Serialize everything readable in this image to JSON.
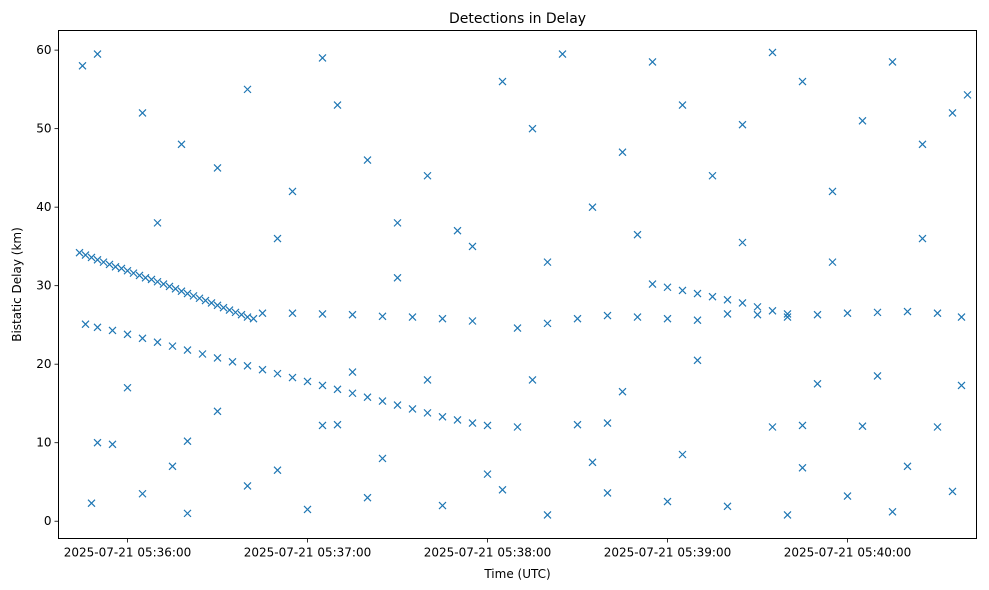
{
  "chart_data": {
    "type": "scatter",
    "title": "Detections in Delay",
    "xlabel": "Time (UTC)",
    "ylabel": "Bistatic Delay (km)",
    "marker": "x",
    "color": "#1f77b4",
    "grid": false,
    "xlim": [
      "2025-07-21 05:35:37",
      "2025-07-21 05:40:43"
    ],
    "ylim": [
      -2.2,
      62.5
    ],
    "x_ticks": [
      "2025-07-21 05:36:00",
      "2025-07-21 05:37:00",
      "2025-07-21 05:38:00",
      "2025-07-21 05:39:00",
      "2025-07-21 05:40:00"
    ],
    "y_ticks": [
      0,
      10,
      20,
      30,
      40,
      50,
      60
    ],
    "series": [
      {
        "points": [
          [
            "2025-07-21 05:35:44",
            34.2
          ],
          [
            "2025-07-21 05:35:46",
            33.9
          ],
          [
            "2025-07-21 05:35:48",
            33.6
          ],
          [
            "2025-07-21 05:35:50",
            33.3
          ],
          [
            "2025-07-21 05:35:52",
            33.0
          ],
          [
            "2025-07-21 05:35:54",
            32.7
          ],
          [
            "2025-07-21 05:35:56",
            32.4
          ],
          [
            "2025-07-21 05:35:58",
            32.2
          ],
          [
            "2025-07-21 05:36:00",
            31.9
          ],
          [
            "2025-07-21 05:36:02",
            31.6
          ],
          [
            "2025-07-21 05:36:04",
            31.3
          ],
          [
            "2025-07-21 05:36:06",
            31.0
          ],
          [
            "2025-07-21 05:36:08",
            30.8
          ],
          [
            "2025-07-21 05:36:10",
            30.5
          ],
          [
            "2025-07-21 05:36:12",
            30.2
          ],
          [
            "2025-07-21 05:36:14",
            29.9
          ],
          [
            "2025-07-21 05:36:16",
            29.6
          ],
          [
            "2025-07-21 05:36:18",
            29.3
          ],
          [
            "2025-07-21 05:36:20",
            29.0
          ],
          [
            "2025-07-21 05:36:22",
            28.7
          ],
          [
            "2025-07-21 05:36:24",
            28.4
          ],
          [
            "2025-07-21 05:36:26",
            28.1
          ],
          [
            "2025-07-21 05:36:28",
            27.8
          ],
          [
            "2025-07-21 05:36:30",
            27.5
          ],
          [
            "2025-07-21 05:36:32",
            27.2
          ],
          [
            "2025-07-21 05:36:34",
            26.9
          ],
          [
            "2025-07-21 05:36:36",
            26.6
          ],
          [
            "2025-07-21 05:36:38",
            26.3
          ],
          [
            "2025-07-21 05:36:40",
            26.0
          ],
          [
            "2025-07-21 05:36:42",
            25.8
          ],
          [
            "2025-07-21 05:35:46",
            25.1
          ],
          [
            "2025-07-21 05:35:50",
            24.7
          ],
          [
            "2025-07-21 05:35:55",
            24.3
          ],
          [
            "2025-07-21 05:36:00",
            23.8
          ],
          [
            "2025-07-21 05:36:05",
            23.3
          ],
          [
            "2025-07-21 05:36:10",
            22.8
          ],
          [
            "2025-07-21 05:36:15",
            22.3
          ],
          [
            "2025-07-21 05:36:20",
            21.8
          ],
          [
            "2025-07-21 05:36:25",
            21.3
          ],
          [
            "2025-07-21 05:36:30",
            20.8
          ],
          [
            "2025-07-21 05:36:35",
            20.3
          ],
          [
            "2025-07-21 05:36:40",
            19.8
          ],
          [
            "2025-07-21 05:36:45",
            19.3
          ],
          [
            "2025-07-21 05:36:50",
            18.8
          ],
          [
            "2025-07-21 05:36:55",
            18.3
          ],
          [
            "2025-07-21 05:37:00",
            17.8
          ],
          [
            "2025-07-21 05:37:05",
            17.3
          ],
          [
            "2025-07-21 05:37:10",
            16.8
          ],
          [
            "2025-07-21 05:37:15",
            16.3
          ],
          [
            "2025-07-21 05:37:20",
            15.8
          ],
          [
            "2025-07-21 05:37:25",
            15.3
          ],
          [
            "2025-07-21 05:37:30",
            14.8
          ],
          [
            "2025-07-21 05:37:35",
            14.3
          ],
          [
            "2025-07-21 05:37:40",
            13.8
          ],
          [
            "2025-07-21 05:37:45",
            13.3
          ],
          [
            "2025-07-21 05:37:50",
            12.9
          ],
          [
            "2025-07-21 05:37:55",
            12.5
          ],
          [
            "2025-07-21 05:38:00",
            12.2
          ],
          [
            "2025-07-21 05:36:45",
            26.5
          ],
          [
            "2025-07-21 05:36:55",
            26.5
          ],
          [
            "2025-07-21 05:37:05",
            26.4
          ],
          [
            "2025-07-21 05:37:15",
            26.3
          ],
          [
            "2025-07-21 05:37:25",
            26.1
          ],
          [
            "2025-07-21 05:37:35",
            26.0
          ],
          [
            "2025-07-21 05:37:45",
            25.8
          ],
          [
            "2025-07-21 05:37:55",
            25.5
          ],
          [
            "2025-07-21 05:38:10",
            24.6
          ],
          [
            "2025-07-21 05:38:20",
            25.2
          ],
          [
            "2025-07-21 05:38:30",
            25.8
          ],
          [
            "2025-07-21 05:38:40",
            26.2
          ],
          [
            "2025-07-21 05:38:50",
            26.0
          ],
          [
            "2025-07-21 05:39:00",
            25.8
          ],
          [
            "2025-07-21 05:39:10",
            25.6
          ],
          [
            "2025-07-21 05:39:20",
            26.4
          ],
          [
            "2025-07-21 05:39:30",
            26.3
          ],
          [
            "2025-07-21 05:39:40",
            26.0
          ],
          [
            "2025-07-21 05:39:50",
            26.3
          ],
          [
            "2025-07-21 05:40:00",
            26.5
          ],
          [
            "2025-07-21 05:40:10",
            26.6
          ],
          [
            "2025-07-21 05:40:20",
            26.7
          ],
          [
            "2025-07-21 05:40:30",
            26.5
          ],
          [
            "2025-07-21 05:40:38",
            26.0
          ],
          [
            "2025-07-21 05:38:55",
            30.2
          ],
          [
            "2025-07-21 05:39:00",
            29.8
          ],
          [
            "2025-07-21 05:39:05",
            29.4
          ],
          [
            "2025-07-21 05:39:10",
            29.0
          ],
          [
            "2025-07-21 05:39:15",
            28.6
          ],
          [
            "2025-07-21 05:39:20",
            28.2
          ],
          [
            "2025-07-21 05:39:25",
            27.8
          ],
          [
            "2025-07-21 05:39:30",
            27.3
          ],
          [
            "2025-07-21 05:39:35",
            26.8
          ],
          [
            "2025-07-21 05:39:40",
            26.4
          ],
          [
            "2025-07-21 05:35:50",
            10.0
          ],
          [
            "2025-07-21 05:35:55",
            9.8
          ],
          [
            "2025-07-21 05:36:20",
            10.2
          ],
          [
            "2025-07-21 05:37:05",
            12.2
          ],
          [
            "2025-07-21 05:37:10",
            12.3
          ],
          [
            "2025-07-21 05:38:10",
            12.0
          ],
          [
            "2025-07-21 05:38:30",
            12.3
          ],
          [
            "2025-07-21 05:38:40",
            12.5
          ],
          [
            "2025-07-21 05:39:35",
            12.0
          ],
          [
            "2025-07-21 05:39:45",
            12.2
          ],
          [
            "2025-07-21 05:40:05",
            12.1
          ],
          [
            "2025-07-21 05:40:30",
            12.0
          ],
          [
            "2025-07-21 05:35:45",
            58.0
          ],
          [
            "2025-07-21 05:35:50",
            59.5
          ],
          [
            "2025-07-21 05:36:05",
            52.0
          ],
          [
            "2025-07-21 05:36:18",
            48.0
          ],
          [
            "2025-07-21 05:36:30",
            45.0
          ],
          [
            "2025-07-21 05:36:40",
            55.0
          ],
          [
            "2025-07-21 05:36:55",
            42.0
          ],
          [
            "2025-07-21 05:37:05",
            59.0
          ],
          [
            "2025-07-21 05:37:10",
            53.0
          ],
          [
            "2025-07-21 05:37:20",
            46.0
          ],
          [
            "2025-07-21 05:37:30",
            38.0
          ],
          [
            "2025-07-21 05:37:40",
            44.0
          ],
          [
            "2025-07-21 05:37:50",
            37.0
          ],
          [
            "2025-07-21 05:38:05",
            56.0
          ],
          [
            "2025-07-21 05:38:15",
            50.0
          ],
          [
            "2025-07-21 05:38:25",
            59.5
          ],
          [
            "2025-07-21 05:38:35",
            40.0
          ],
          [
            "2025-07-21 05:38:45",
            47.0
          ],
          [
            "2025-07-21 05:38:55",
            58.5
          ],
          [
            "2025-07-21 05:39:05",
            53.0
          ],
          [
            "2025-07-21 05:39:15",
            44.0
          ],
          [
            "2025-07-21 05:39:25",
            50.5
          ],
          [
            "2025-07-21 05:39:35",
            59.7
          ],
          [
            "2025-07-21 05:39:45",
            56.0
          ],
          [
            "2025-07-21 05:39:55",
            42.0
          ],
          [
            "2025-07-21 05:40:05",
            51.0
          ],
          [
            "2025-07-21 05:40:15",
            58.5
          ],
          [
            "2025-07-21 05:40:25",
            48.0
          ],
          [
            "2025-07-21 05:40:35",
            52.0
          ],
          [
            "2025-07-21 05:40:40",
            54.3
          ],
          [
            "2025-07-21 05:35:48",
            2.3
          ],
          [
            "2025-07-21 05:36:05",
            3.5
          ],
          [
            "2025-07-21 05:36:20",
            1.0
          ],
          [
            "2025-07-21 05:36:40",
            4.5
          ],
          [
            "2025-07-21 05:37:00",
            1.5
          ],
          [
            "2025-07-21 05:37:20",
            3.0
          ],
          [
            "2025-07-21 05:37:45",
            2.0
          ],
          [
            "2025-07-21 05:38:05",
            4.0
          ],
          [
            "2025-07-21 05:38:20",
            0.8
          ],
          [
            "2025-07-21 05:38:40",
            3.6
          ],
          [
            "2025-07-21 05:39:00",
            2.5
          ],
          [
            "2025-07-21 05:39:20",
            1.9
          ],
          [
            "2025-07-21 05:39:40",
            0.8
          ],
          [
            "2025-07-21 05:40:00",
            3.2
          ],
          [
            "2025-07-21 05:40:15",
            1.2
          ],
          [
            "2025-07-21 05:40:35",
            3.8
          ],
          [
            "2025-07-21 05:36:10",
            38.0
          ],
          [
            "2025-07-21 05:36:50",
            36.0
          ],
          [
            "2025-07-21 05:37:30",
            31.0
          ],
          [
            "2025-07-21 05:37:55",
            35.0
          ],
          [
            "2025-07-21 05:38:20",
            33.0
          ],
          [
            "2025-07-21 05:38:50",
            36.5
          ],
          [
            "2025-07-21 05:39:25",
            35.5
          ],
          [
            "2025-07-21 05:39:55",
            33.0
          ],
          [
            "2025-07-21 05:40:25",
            36.0
          ],
          [
            "2025-07-21 05:36:00",
            17.0
          ],
          [
            "2025-07-21 05:36:30",
            14.0
          ],
          [
            "2025-07-21 05:37:15",
            19.0
          ],
          [
            "2025-07-21 05:37:40",
            18.0
          ],
          [
            "2025-07-21 05:38:15",
            18.0
          ],
          [
            "2025-07-21 05:38:45",
            16.5
          ],
          [
            "2025-07-21 05:39:10",
            20.5
          ],
          [
            "2025-07-21 05:39:50",
            17.5
          ],
          [
            "2025-07-21 05:40:10",
            18.5
          ],
          [
            "2025-07-21 05:40:38",
            17.3
          ],
          [
            "2025-07-21 05:36:15",
            7.0
          ],
          [
            "2025-07-21 05:36:50",
            6.5
          ],
          [
            "2025-07-21 05:37:25",
            8.0
          ],
          [
            "2025-07-21 05:38:00",
            6.0
          ],
          [
            "2025-07-21 05:38:35",
            7.5
          ],
          [
            "2025-07-21 05:39:05",
            8.5
          ],
          [
            "2025-07-21 05:39:45",
            6.8
          ],
          [
            "2025-07-21 05:40:20",
            7.0
          ]
        ]
      }
    ]
  }
}
